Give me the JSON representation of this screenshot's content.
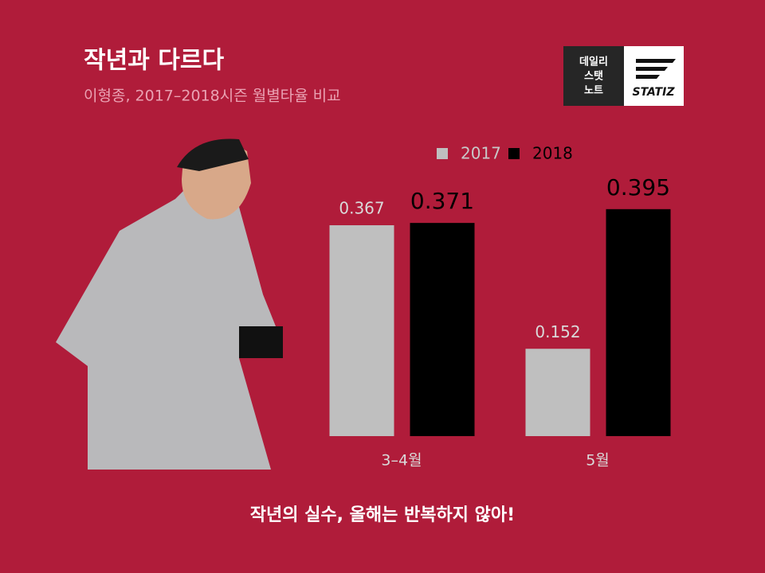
{
  "chart_data": {
    "type": "bar",
    "title": "작년과 다르다",
    "subtitle": "이형종, 2017–2018시즌 월별타율 비교",
    "categories": [
      "3–4월",
      "5월"
    ],
    "series": [
      {
        "name": "2017",
        "color": "#bfbfbf",
        "values": [
          0.367,
          0.152
        ]
      },
      {
        "name": "2018",
        "color": "#000000",
        "values": [
          0.371,
          0.395
        ]
      }
    ],
    "ylim": [
      0,
      0.5
    ],
    "annotation": "작년의 실수, 올해는 반복하지 않아!"
  },
  "badge": {
    "lines": [
      "데일리",
      "스탯",
      "노트"
    ],
    "brand": "STATIZ"
  }
}
